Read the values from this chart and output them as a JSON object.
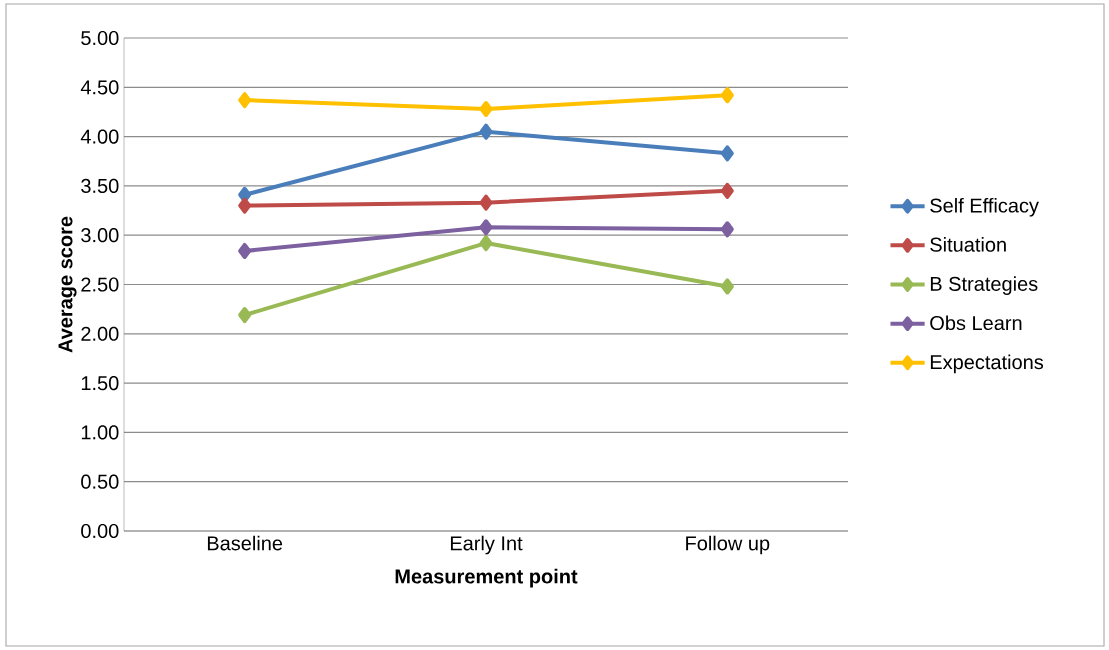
{
  "chart_data": {
    "type": "line",
    "xlabel": "Measurement point",
    "ylabel": "Average score",
    "categories": [
      "Baseline",
      "Early Int",
      "Follow up"
    ],
    "series": [
      {
        "name": "Self Efficacy",
        "color": "#4a7ebb",
        "values": [
          3.41,
          4.05,
          3.83
        ]
      },
      {
        "name": "Situation",
        "color": "#be4b48",
        "values": [
          3.3,
          3.33,
          3.45
        ]
      },
      {
        "name": "B Strategies",
        "color": "#98b954",
        "values": [
          2.19,
          2.92,
          2.48
        ]
      },
      {
        "name": "Obs Learn",
        "color": "#7d60a0",
        "values": [
          2.84,
          3.08,
          3.06
        ]
      },
      {
        "name": "Expectations",
        "color": "#ffc000",
        "values": [
          4.37,
          4.28,
          4.42
        ]
      }
    ],
    "ylim": [
      0,
      5
    ],
    "yticks": [
      {
        "value": 0,
        "label": "0.00"
      },
      {
        "value": 0.5,
        "label": "0.50"
      },
      {
        "value": 1,
        "label": "1.00"
      },
      {
        "value": 1.5,
        "label": "1.50"
      },
      {
        "value": 2,
        "label": "2.00"
      },
      {
        "value": 2.5,
        "label": "2.50"
      },
      {
        "value": 3,
        "label": "3.00"
      },
      {
        "value": 3.5,
        "label": "3.50"
      },
      {
        "value": 4,
        "label": "4.00"
      },
      {
        "value": 4.5,
        "label": "4.50"
      },
      {
        "value": 5,
        "label": "5.00"
      }
    ],
    "grid": "y",
    "legend": "right",
    "marker": "diamond",
    "line_style": "solid"
  }
}
